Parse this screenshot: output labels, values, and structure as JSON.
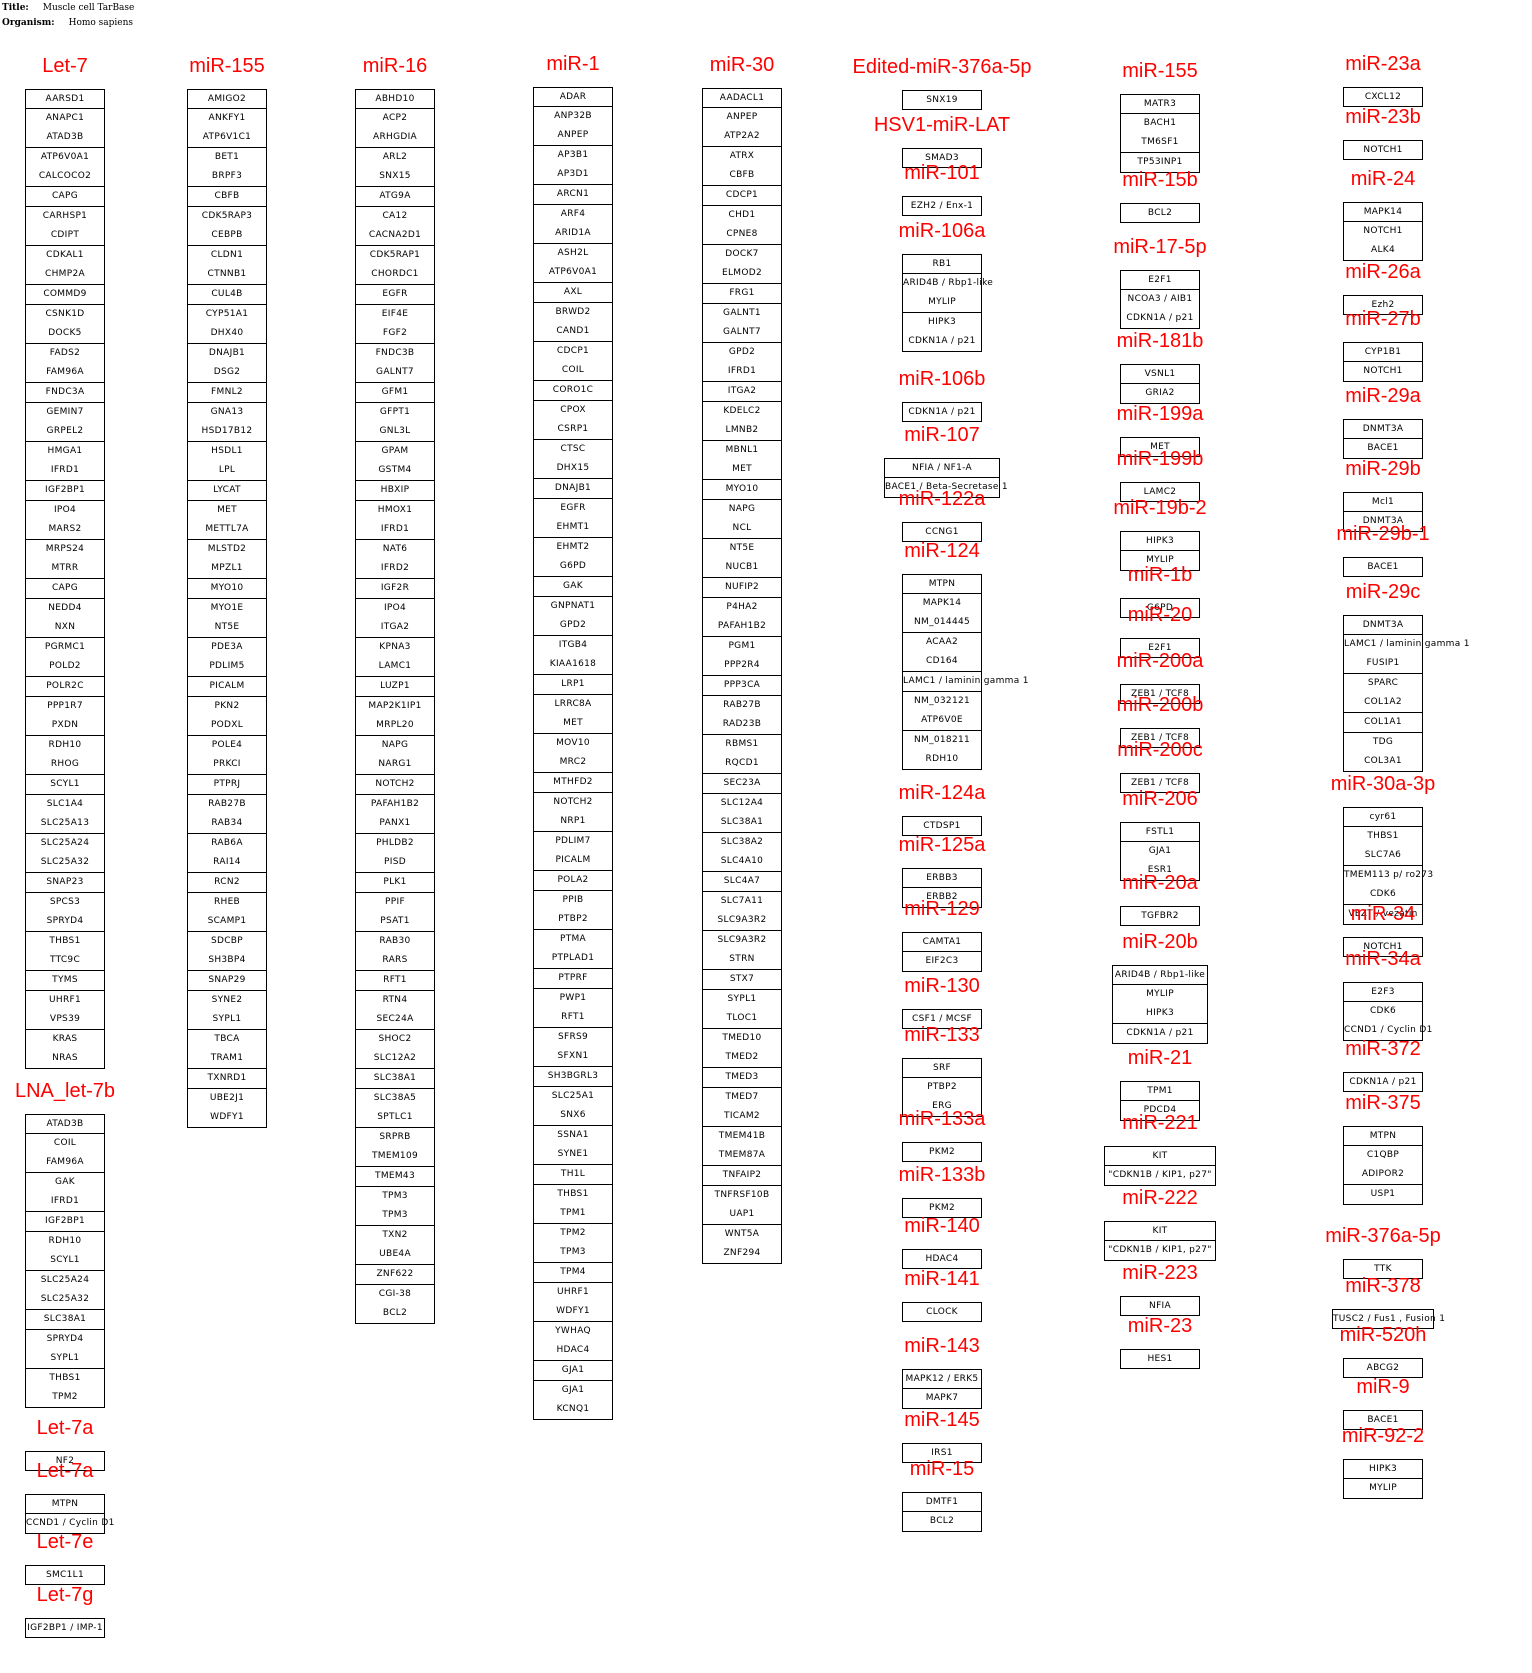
{
  "meta": {
    "title_label": "Title:",
    "title_value": "Muscle cell TarBase",
    "organism_label": "Organism:",
    "organism_value": "Homo sapiens"
  },
  "colors": {
    "mirna_title": "#ff0000",
    "box_border": "#000000"
  },
  "columns": [
    {
      "groups": [
        {
          "title": "Let-7",
          "genes": [
            "AARSD1",
            "ANAPC1",
            "ATAD3B",
            "ATP6V0A1",
            "CALCOCO2",
            "CAPG",
            "CARHSP1",
            "CDIPT",
            "CDKAL1",
            "CHMP2A",
            "COMMD9",
            "CSNK1D",
            "DOCK5",
            "FADS2",
            "FAM96A",
            "FNDC3A",
            "GEMIN7",
            "GRPEL2",
            "HMGA1",
            "IFRD1",
            "IGF2BP1",
            "IPO4",
            "MARS2",
            "MRPS24",
            "MTRR",
            "CAPG",
            "NEDD4",
            "NXN",
            "PGRMC1",
            "POLD2",
            "POLR2C",
            "PPP1R7",
            "PXDN",
            "RDH10",
            "RHOG",
            "SCYL1",
            "SLC1A4",
            "SLC25A13",
            "SLC25A24",
            "SLC25A32",
            "SNAP23",
            "SPCS3",
            "SPRYD4",
            "THBS1",
            "TTC9C",
            "TYMS",
            "UHRF1",
            "VPS39",
            "KRAS",
            "NRAS"
          ]
        },
        {
          "title": "LNA_let-7b",
          "genes": [
            "ATAD3B",
            "COIL",
            "FAM96A",
            "GAK",
            "IFRD1",
            "IGF2BP1",
            "RDH10",
            "SCYL1",
            "SLC25A24",
            "SLC25A32",
            "SLC38A1",
            "SPRYD4",
            "SYPL1",
            "THBS1",
            "TPM2"
          ]
        },
        {
          "title": "Let-7a",
          "genes": [
            "NF2"
          ]
        },
        {
          "title": "Let-7a",
          "genes": [
            "MTPN",
            "CCND1 / Cyclin D1"
          ]
        },
        {
          "title": "Let-7e",
          "genes": [
            "SMC1L1"
          ]
        },
        {
          "title": "Let-7g",
          "genes": [
            "IGF2BP1 / IMP-1"
          ]
        }
      ]
    },
    {
      "groups": [
        {
          "title": "miR-155",
          "genes": [
            "AMIGO2",
            "ANKFY1",
            "ATP6V1C1",
            "BET1",
            "BRPF3",
            "CBFB",
            "CDK5RAP3",
            "CEBPB",
            "CLDN1",
            "CTNNB1",
            "CUL4B",
            "CYP51A1",
            "DHX40",
            "DNAJB1",
            "DSG2",
            "FMNL2",
            "GNA13",
            "HSD17B12",
            "HSDL1",
            "LPL",
            "LYCAT",
            "MET",
            "METTL7A",
            "MLSTD2",
            "MPZL1",
            "MYO10",
            "MYO1E",
            "NT5E",
            "PDE3A",
            "PDLIM5",
            "PICALM",
            "PKN2",
            "PODXL",
            "POLE4",
            "PRKCI",
            "PTPRJ",
            "RAB27B",
            "RAB34",
            "RAB6A",
            "RAI14",
            "RCN2",
            "RHEB",
            "SCAMP1",
            "SDCBP",
            "SH3BP4",
            "SNAP29",
            "SYNE2",
            "SYPL1",
            "TBCA",
            "TRAM1",
            "TXNRD1",
            "UBE2J1",
            "WDFY1"
          ]
        }
      ]
    },
    {
      "groups": [
        {
          "title": "miR-16",
          "genes": [
            "ABHD10",
            "ACP2",
            "ARHGDIA",
            "ARL2",
            "SNX15",
            "ATG9A",
            "CA12",
            "CACNA2D1",
            "CDK5RAP1",
            "CHORDC1",
            "EGFR",
            "EIF4E",
            "FGF2",
            "FNDC3B",
            "GALNT7",
            "GFM1",
            "GFPT1",
            "GNL3L",
            "GPAM",
            "GSTM4",
            "HBXIP",
            "HMOX1",
            "IFRD1",
            "NAT6",
            "IFRD2",
            "IGF2R",
            "IPO4",
            "ITGA2",
            "KPNA3",
            "LAMC1",
            "LUZP1",
            "MAP2K1IP1",
            "MRPL20",
            "NAPG",
            "NARG1",
            "NOTCH2",
            "PAFAH1B2",
            "PANX1",
            "PHLDB2",
            "PISD",
            "PLK1",
            "PPIF",
            "PSAT1",
            "RAB30",
            "RARS",
            "RFT1",
            "RTN4",
            "SEC24A",
            "SHOC2",
            "SLC12A2",
            "SLC38A1",
            "SLC38A5",
            "SPTLC1",
            "SRPRB",
            "TMEM109",
            "TMEM43",
            "TPM3",
            "TPM3",
            "TXN2",
            "UBE4A",
            "ZNF622",
            "CGI-38",
            "BCL2"
          ]
        }
      ]
    },
    {
      "groups": [
        {
          "title": "miR-1",
          "genes": [
            "ADAR",
            "ANP32B",
            "ANPEP",
            "AP3B1",
            "AP3D1",
            "ARCN1",
            "ARF4",
            "ARID1A",
            "ASH2L",
            "ATP6V0A1",
            "AXL",
            "BRWD2",
            "CAND1",
            "CDCP1",
            "COIL",
            "CORO1C",
            "CPOX",
            "CSRP1",
            "CTSC",
            "DHX15",
            "DNAJB1",
            "EGFR",
            "EHMT1",
            "EHMT2",
            "G6PD",
            "GAK",
            "GNPNAT1",
            "GPD2",
            "ITGB4",
            "KIAA1618",
            "LRP1",
            "LRRC8A",
            "MET",
            "MOV10",
            "MRC2",
            "MTHFD2",
            "NOTCH2",
            "NRP1",
            "PDLIM7",
            "PICALM",
            "POLA2",
            "PPIB",
            "PTBP2",
            "PTMA",
            "PTPLAD1",
            "PTPRF",
            "PWP1",
            "RFT1",
            "SFRS9",
            "SFXN1",
            "SH3BGRL3",
            "SLC25A1",
            "SNX6",
            "SSNA1",
            "SYNE1",
            "TH1L",
            "THBS1",
            "TPM1",
            "TPM2",
            "TPM3",
            "TPM4",
            "UHRF1",
            "WDFY1",
            "YWHAQ",
            "HDAC4",
            "GJA1",
            "GJA1",
            "KCNQ1"
          ]
        }
      ]
    },
    {
      "groups": [
        {
          "title": "miR-30",
          "genes": [
            "AADACL1",
            "ANPEP",
            "ATP2A2",
            "ATRX",
            "CBFB",
            "CDCP1",
            "CHD1",
            "CPNE8",
            "DOCK7",
            "ELMOD2",
            "FRG1",
            "GALNT1",
            "GALNT7",
            "GPD2",
            "IFRD1",
            "ITGA2",
            "KDELC2",
            "LMNB2",
            "MBNL1",
            "MET",
            "MYO10",
            "NAPG",
            "NCL",
            "NT5E",
            "NUCB1",
            "NUFIP2",
            "P4HA2",
            "PAFAH1B2",
            "PGM1",
            "PPP2R4",
            "PPP3CA",
            "RAB27B",
            "RAD23B",
            "RBMS1",
            "RQCD1",
            "SEC23A",
            "SLC12A4",
            "SLC38A1",
            "SLC38A2",
            "SLC4A10",
            "SLC4A7",
            "SLC7A11",
            "SLC9A3R2",
            "SLC9A3R2",
            "STRN",
            "STX7",
            "SYPL1",
            "TLOC1",
            "TMED10",
            "TMED2",
            "TMED3",
            "TMED7",
            "TICAM2",
            "TMEM41B",
            "TMEM87A",
            "TNFAIP2",
            "TNFRSF10B",
            "UAP1",
            "WNT5A",
            "ZNF294"
          ]
        }
      ]
    },
    {
      "groups": [
        {
          "title": "Edited-miR-376a-5p",
          "genes": [
            "SNX19"
          ]
        },
        {
          "title": "HSV1-miR-LAT",
          "genes": [
            "SMAD3"
          ]
        },
        {
          "title": "miR-101",
          "genes": [
            "EZH2 / Enx-1"
          ]
        },
        {
          "title": "miR-106a",
          "genes": [
            "RB1",
            "ARID4B / Rbp1-like",
            "MYLIP",
            "HIPK3",
            "CDKN1A / p21"
          ]
        },
        {
          "title": "miR-106b",
          "genes": [
            "CDKN1A / p21"
          ]
        },
        {
          "title": "miR-107",
          "genes": [
            "NFIA / NF1-A",
            "BACE1 / Beta-Secretase 1"
          ]
        },
        {
          "title": "miR-122a",
          "genes": [
            "CCNG1"
          ]
        },
        {
          "title": "miR-124",
          "genes": [
            "MTPN",
            "MAPK14",
            "NM_014445",
            "ACAA2",
            "CD164",
            "LAMC1 / laminin gamma 1",
            "NM_032121",
            "ATP6V0E",
            "NM_018211",
            "RDH10"
          ]
        },
        {
          "title": "miR-124a",
          "genes": [
            "CTDSP1"
          ]
        },
        {
          "title": "miR-125a",
          "genes": [
            "ERBB3",
            "ERBB2"
          ]
        },
        {
          "title": "miR-129",
          "genes": [
            "CAMTA1",
            "EIF2C3"
          ]
        },
        {
          "title": "miR-130",
          "genes": [
            "CSF1 / MCSF"
          ]
        },
        {
          "title": "miR-133",
          "genes": [
            "SRF",
            "PTBP2",
            "ERG"
          ]
        },
        {
          "title": "miR-133a",
          "genes": [
            "PKM2"
          ]
        },
        {
          "title": "miR-133b",
          "genes": [
            "PKM2"
          ]
        },
        {
          "title": "miR-140",
          "genes": [
            "HDAC4"
          ]
        },
        {
          "title": "miR-141",
          "genes": [
            "CLOCK"
          ]
        },
        {
          "title": "miR-143",
          "genes": [
            "MAPK12 / ERK5",
            "MAPK7"
          ]
        },
        {
          "title": "miR-145",
          "genes": [
            "IRS1"
          ]
        },
        {
          "title": "miR-15",
          "genes": [
            "DMTF1",
            "BCL2"
          ]
        }
      ]
    },
    {
      "groups": [
        {
          "title": "miR-155",
          "genes": [
            "MATR3",
            "BACH1",
            "TM6SF1",
            "TP53INP1"
          ]
        },
        {
          "title": "miR-15b",
          "genes": [
            "BCL2"
          ]
        },
        {
          "title": "miR-17-5p",
          "genes": [
            "E2F1",
            "NCOA3 / AIB1",
            "CDKN1A / p21"
          ]
        },
        {
          "title": "miR-181b",
          "genes": [
            "VSNL1",
            "GRIA2"
          ]
        },
        {
          "title": "miR-199a",
          "genes": [
            "MET"
          ]
        },
        {
          "title": "miR-199b",
          "genes": [
            "LAMC2"
          ]
        },
        {
          "title": "miR-19b-2",
          "genes": [
            "HIPK3",
            "MYLIP"
          ]
        },
        {
          "title": "miR-1b",
          "genes": [
            "G6PD"
          ]
        },
        {
          "title": "miR-20",
          "genes": [
            "E2F1"
          ]
        },
        {
          "title": "miR-200a",
          "genes": [
            "ZEB1 / TCF8"
          ]
        },
        {
          "title": "miR-200b",
          "genes": [
            "ZEB1 / TCF8"
          ]
        },
        {
          "title": "miR-200c",
          "genes": [
            "ZEB1 / TCF8"
          ]
        },
        {
          "title": "miR-206",
          "genes": [
            "FSTL1",
            "GJA1",
            "ESR1"
          ]
        },
        {
          "title": "miR-20a",
          "genes": [
            "TGFBR2"
          ]
        },
        {
          "title": "miR-20b",
          "genes": [
            "ARID4B / Rbp1-like",
            "MYLIP",
            "HIPK3",
            "CDKN1A / p21"
          ]
        },
        {
          "title": "miR-21",
          "genes": [
            "TPM1",
            "PDCD4"
          ]
        },
        {
          "title": "miR-221",
          "genes": [
            "KIT",
            "\"CDKN1B / KIP1, p27\""
          ]
        },
        {
          "title": "miR-222",
          "genes": [
            "KIT",
            "\"CDKN1B / KIP1, p27\""
          ]
        },
        {
          "title": "miR-223",
          "genes": [
            "NFIA"
          ]
        },
        {
          "title": "miR-23",
          "genes": [
            "HES1"
          ]
        }
      ]
    },
    {
      "groups": [
        {
          "title": "miR-23a",
          "genes": [
            "CXCL12"
          ]
        },
        {
          "title": "miR-23b",
          "genes": [
            "NOTCH1"
          ]
        },
        {
          "title": "miR-24",
          "genes": [
            "MAPK14",
            "NOTCH1",
            "ALK4"
          ]
        },
        {
          "title": "miR-26a",
          "genes": [
            "Ezh2"
          ]
        },
        {
          "title": "miR-27b",
          "genes": [
            "CYP1B1",
            "NOTCH1"
          ]
        },
        {
          "title": "miR-29a",
          "genes": [
            "DNMT3A",
            "BACE1"
          ]
        },
        {
          "title": "miR-29b",
          "genes": [
            "Mcl1",
            "DNMT3A"
          ]
        },
        {
          "title": "miR-29b-1",
          "genes": [
            "BACE1"
          ]
        },
        {
          "title": "miR-29c",
          "genes": [
            "DNMT3A",
            "LAMC1 / laminin gamma 1",
            "FUSIP1",
            "SPARC",
            "COL1A2",
            "COL1A1",
            "TDG",
            "COL3A1"
          ]
        },
        {
          "title": "miR-30a-3p",
          "genes": [
            "cyr61",
            "THBS1",
            "SLC7A6",
            "TMEM113 p/ ro273",
            "CDK6",
            "VEZT / vezatin"
          ]
        },
        {
          "title": "miR-34",
          "genes": [
            "NOTCH1"
          ]
        },
        {
          "title": "miR-34a",
          "genes": [
            "E2F3",
            "CDK6",
            "CCND1 / Cyclin D1"
          ]
        },
        {
          "title": "miR-372",
          "genes": [
            "CDKN1A / p21"
          ]
        },
        {
          "title": "miR-375",
          "genes": [
            "MTPN",
            "C1QBP",
            "ADIPOR2",
            "USP1"
          ]
        },
        {
          "title": "miR-376a-5p",
          "genes": [
            "TTK"
          ]
        },
        {
          "title": "miR-378",
          "genes": [
            "TUSC2 / Fus1 , Fusion 1"
          ]
        },
        {
          "title": "miR-520h",
          "genes": [
            "ABCG2"
          ]
        },
        {
          "title": "miR-9",
          "genes": [
            "BACE1"
          ]
        },
        {
          "title": "miR-92-2",
          "genes": [
            "HIPK3",
            "MYLIP"
          ]
        }
      ]
    }
  ]
}
